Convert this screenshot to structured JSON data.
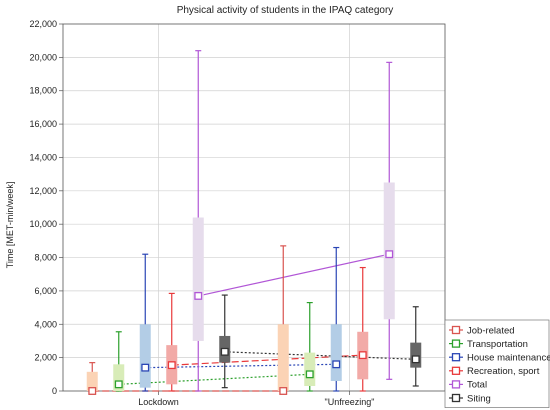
{
  "chart_data": {
    "type": "box",
    "title": "Physical activity of students in the IPAQ category",
    "xlabel": "",
    "ylabel": "Time [MET-min/week]",
    "categories": [
      "Lockdown",
      "\"Unfreezing\""
    ],
    "ylim": [
      0,
      22000
    ],
    "yticks": [
      "0",
      "2,000",
      "4,000",
      "6,000",
      "8,000",
      "10,000",
      "12,000",
      "14,000",
      "16,000",
      "18,000",
      "20,000",
      "22,000"
    ],
    "ytick_values": [
      0,
      2000,
      4000,
      6000,
      8000,
      10000,
      12000,
      14000,
      16000,
      18000,
      20000,
      22000
    ],
    "grid": true,
    "legend_position": "bottom-right",
    "series": [
      {
        "name": "Job-related",
        "color": "#d9534f",
        "box_color": "#fbd3b5",
        "line_style": "dashed",
        "median": [
          0,
          0
        ],
        "q1": [
          0,
          0
        ],
        "q3": [
          1150,
          4000
        ],
        "whisker_low": [
          0,
          0
        ],
        "whisker_high": [
          1700,
          8700
        ]
      },
      {
        "name": "Transportation",
        "color": "#2ca02c",
        "box_color": "#d8ecb8",
        "line_style": "dotted",
        "median": [
          400,
          1000
        ],
        "q1": [
          0,
          300
        ],
        "q3": [
          1600,
          2300
        ],
        "whisker_low": [
          0,
          0
        ],
        "whisker_high": [
          3550,
          5300
        ]
      },
      {
        "name": "House maintenance",
        "color": "#2a45b5",
        "box_color": "#b3cde6",
        "line_style": "dotted",
        "median": [
          1400,
          1600
        ],
        "q1": [
          200,
          600
        ],
        "q3": [
          4000,
          4000
        ],
        "whisker_low": [
          0,
          0
        ],
        "whisker_high": [
          8200,
          8600
        ]
      },
      {
        "name": "Recreation, sport",
        "color": "#e8393b",
        "box_color": "#f2aaa7",
        "line_style": "dashed",
        "median": [
          1550,
          2150
        ],
        "q1": [
          400,
          700
        ],
        "q3": [
          2750,
          3550
        ],
        "whisker_low": [
          0,
          0
        ],
        "whisker_high": [
          5850,
          7400
        ]
      },
      {
        "name": "Total",
        "color": "#b156d6",
        "box_color": "#e6dcec",
        "line_style": "solid",
        "median": [
          5700,
          8200
        ],
        "q1": [
          3000,
          4300
        ],
        "q3": [
          10400,
          12500
        ],
        "whisker_low": [
          0,
          700
        ],
        "whisker_high": [
          20400,
          19700
        ]
      },
      {
        "name": "Siting",
        "color": "#333333",
        "box_color": "#666666",
        "line_style": "dotted",
        "median": [
          2350,
          1900
        ],
        "q1": [
          1700,
          1400
        ],
        "q3": [
          3300,
          2900
        ],
        "whisker_low": [
          200,
          300
        ],
        "whisker_high": [
          5750,
          5050
        ]
      }
    ]
  }
}
